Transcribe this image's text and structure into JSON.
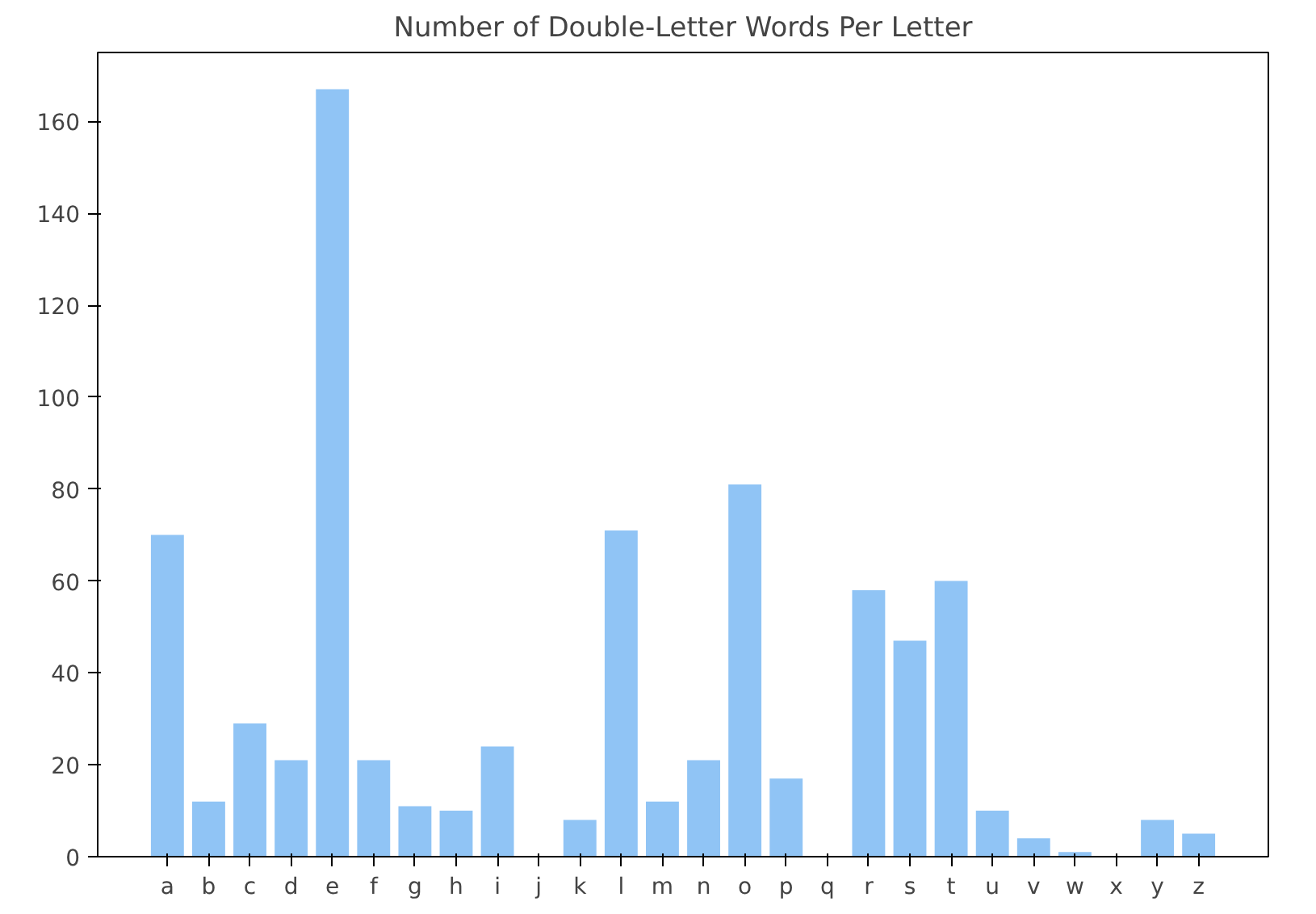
{
  "chart_data": {
    "type": "bar",
    "title": "Number of Double-Letter Words Per Letter",
    "categories": [
      "a",
      "b",
      "c",
      "d",
      "e",
      "f",
      "g",
      "h",
      "i",
      "j",
      "k",
      "l",
      "m",
      "n",
      "o",
      "p",
      "q",
      "r",
      "s",
      "t",
      "u",
      "v",
      "w",
      "x",
      "y",
      "z"
    ],
    "values": [
      70,
      12,
      29,
      21,
      167,
      21,
      11,
      10,
      24,
      0,
      8,
      71,
      12,
      21,
      81,
      17,
      0,
      58,
      47,
      60,
      10,
      4,
      1,
      0,
      8,
      5
    ],
    "color": "#90c4f5",
    "ylim": [
      0,
      175
    ],
    "yticks": [
      0,
      20,
      40,
      60,
      80,
      100,
      120,
      140,
      160
    ],
    "grid": false
  }
}
